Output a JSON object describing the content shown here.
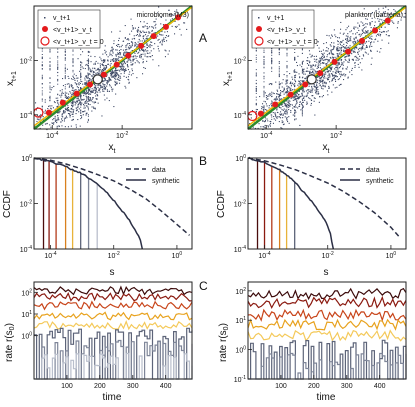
{
  "panel_labels": [
    "A",
    "B",
    "C"
  ],
  "colors": {
    "scatter": "#3f4a66",
    "fit_line": "#f0b800",
    "guide_line": "#2d8a2d",
    "mean_dot": "#e41a1c",
    "zero_circle": "#e41a1c",
    "ccdf_line": "#2b2f45",
    "rates_warm": [
      "#4a0d0d",
      "#8b1a10",
      "#c8451a",
      "#e8a21e",
      "#f4c95a"
    ],
    "rates_cool": [
      "#5d6479",
      "#7e8598",
      "#b9bfcc"
    ]
  },
  "chart_data": [
    {
      "type": "scatter",
      "panel": "A-left",
      "title": "microbiome (M3)",
      "xlabel": "x_t",
      "ylabel": "x_t+1",
      "xscale": "log",
      "yscale": "log",
      "xlim": [
        3e-05,
        1
      ],
      "ylim": [
        3e-05,
        1
      ],
      "xticks": [
        "10^-4",
        "10^-2"
      ],
      "yticks": [
        "10^-4",
        "10^-2"
      ],
      "legend": [
        "v_t+1",
        "<v_t+1>_v_t",
        "<v_t+1>_v_t = 0"
      ],
      "legend_placement": "top-left",
      "mean_points": {
        "x": [
          8e-05,
          0.0002,
          0.0005,
          0.0012,
          0.003,
          0.007,
          0.015,
          0.035,
          0.08,
          0.18,
          0.4
        ],
        "y": [
          0.00012,
          0.00028,
          0.0006,
          0.0013,
          0.003,
          0.007,
          0.015,
          0.034,
          0.078,
          0.17,
          0.38
        ]
      },
      "zero_point": {
        "x": 4e-05,
        "y": 0.00012
      },
      "highlight_point": {
        "x": 0.002,
        "y": 0.002
      }
    },
    {
      "type": "scatter",
      "panel": "A-right",
      "title": "plankton (bacteria)",
      "xlabel": "x_t",
      "ylabel": "x_t+1",
      "xscale": "log",
      "yscale": "log",
      "xlim": [
        3e-05,
        1
      ],
      "ylim": [
        3e-05,
        1
      ],
      "xticks": [
        "10^-4",
        "10^-2"
      ],
      "yticks": [
        "10^-4",
        "10^-2"
      ],
      "legend": [
        "v_t+1",
        "<v_t+1>_v_t",
        "<v_t+1>_v_t = 0"
      ],
      "legend_placement": "top-left",
      "mean_points": {
        "x": [
          7e-05,
          0.00018,
          0.0005,
          0.0013,
          0.0035,
          0.009,
          0.022,
          0.055,
          0.13,
          0.3
        ],
        "y": [
          0.00011,
          0.00024,
          0.00055,
          0.0013,
          0.0034,
          0.0088,
          0.021,
          0.052,
          0.125,
          0.29
        ]
      },
      "zero_point": {
        "x": 4e-05,
        "y": 9e-05
      },
      "highlight_point": {
        "x": 0.002,
        "y": 0.002
      }
    },
    {
      "type": "line",
      "panel": "B-left",
      "xlabel": "s",
      "ylabel": "CCDF",
      "xscale": "log",
      "yscale": "log",
      "xlim": [
        3e-05,
        3
      ],
      "ylim": [
        0.0001,
        1
      ],
      "xticks": [
        "10^-4",
        "10^-2",
        "10^0"
      ],
      "yticks": [
        "10^0",
        "10^-2",
        "10^-4"
      ],
      "legend": [
        "data",
        "synthetic"
      ],
      "legend_placement": "top-right",
      "series": [
        {
          "name": "data",
          "style": "dashed",
          "x": [
            3e-05,
            0.0001,
            0.0003,
            0.001,
            0.003,
            0.01,
            0.03,
            0.1,
            0.3,
            1,
            2.5
          ],
          "y": [
            1,
            0.8,
            0.55,
            0.33,
            0.19,
            0.1,
            0.045,
            0.017,
            0.005,
            0.0012,
            0.0004
          ]
        },
        {
          "name": "synthetic",
          "style": "solid",
          "x": [
            3e-05,
            0.0001,
            0.0003,
            0.001,
            0.002,
            0.004,
            0.008,
            0.015,
            0.03,
            0.05,
            0.07,
            0.08
          ],
          "y": [
            1,
            0.7,
            0.42,
            0.2,
            0.11,
            0.05,
            0.02,
            0.007,
            0.002,
            0.0006,
            0.00025,
            0.0001
          ]
        }
      ],
      "vlines_x": [
        6e-05,
        9e-05,
        0.00015,
        0.0003,
        0.0005,
        0.0009,
        0.0016,
        0.003
      ]
    },
    {
      "type": "line",
      "panel": "B-right",
      "xlabel": "s",
      "ylabel": "CCDF",
      "xscale": "log",
      "yscale": "log",
      "xlim": [
        3e-05,
        3
      ],
      "ylim": [
        0.0001,
        1
      ],
      "xticks": [
        "10^-4",
        "10^-2",
        "10^0"
      ],
      "yticks": [
        "10^0",
        "10^-2",
        "10^-4"
      ],
      "legend": [
        "data",
        "synthetic"
      ],
      "legend_placement": "top-right",
      "series": [
        {
          "name": "data",
          "style": "dashed",
          "x": [
            3e-05,
            0.0001,
            0.0003,
            0.001,
            0.003,
            0.01,
            0.03,
            0.1,
            0.3,
            1,
            2
          ],
          "y": [
            1,
            0.75,
            0.5,
            0.3,
            0.16,
            0.08,
            0.035,
            0.012,
            0.004,
            0.0009,
            0.0003
          ]
        },
        {
          "name": "synthetic",
          "style": "solid",
          "x": [
            3e-05,
            0.0001,
            0.0003,
            0.0006,
            0.001,
            0.002,
            0.004,
            0.008,
            0.012,
            0.015
          ],
          "y": [
            1,
            0.62,
            0.3,
            0.15,
            0.075,
            0.025,
            0.008,
            0.002,
            0.0005,
            0.0001
          ]
        }
      ],
      "vlines_x": [
        6e-05,
        0.0001,
        0.00017,
        0.0003,
        0.0005,
        0.0009
      ]
    },
    {
      "type": "line",
      "panel": "C-left",
      "xlabel": "time",
      "ylabel": "rate r(s_0)",
      "yscale": "log",
      "xlim": [
        0,
        480
      ],
      "ylim": [
        0.01,
        300
      ],
      "xticks": [
        "100",
        "200",
        "300",
        "400"
      ],
      "yticks": [
        "10^2",
        "10^1",
        "10^0"
      ],
      "series_levels": [
        120,
        60,
        25,
        8,
        3,
        0.8,
        0.2,
        0.05
      ]
    },
    {
      "type": "line",
      "panel": "C-right",
      "xlabel": "time",
      "ylabel": "rate r(s_0)",
      "yscale": "log",
      "xlim": [
        0,
        480
      ],
      "ylim": [
        0.1,
        200
      ],
      "xticks": [
        "100",
        "200",
        "300",
        "400"
      ],
      "yticks": [
        "10^2",
        "10^1",
        "10^0",
        "10^-1"
      ],
      "series_levels": [
        80,
        40,
        15,
        7,
        3,
        0.7,
        0.25
      ]
    }
  ]
}
